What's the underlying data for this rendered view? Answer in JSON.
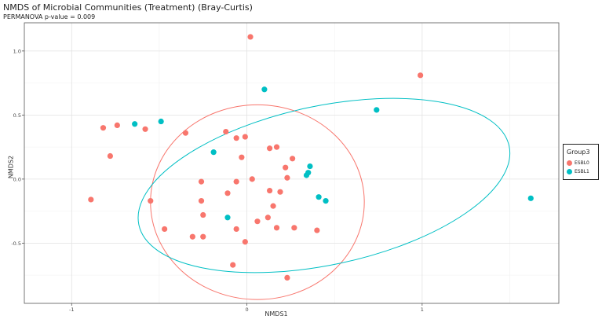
{
  "chart_data": {
    "type": "scatter",
    "title": "NMDS of Microbial Communities (Treatment) (Bray-Curtis)",
    "subtitle": "PERMANOVA p-value = 0.009",
    "xlabel": "NMDS1",
    "ylabel": "NMDS2",
    "xlim": [
      -1.27,
      1.78
    ],
    "ylim": [
      -0.97,
      1.22
    ],
    "xticks": [
      -1,
      0,
      1
    ],
    "yticks": [
      -0.5,
      0.0,
      0.5,
      1.0
    ],
    "xtick_labels": [
      "-1",
      "0",
      "1"
    ],
    "ytick_labels": [
      "-0.5",
      "0.0",
      "0.5",
      "1.0"
    ],
    "grid": true,
    "legend_title": "Group3",
    "series": [
      {
        "name": "ESBL0",
        "color": "#F8766D",
        "x": [
          0.02,
          0.99,
          -0.74,
          -0.82,
          -0.58,
          -0.35,
          -0.12,
          -0.06,
          -0.01,
          0.13,
          0.17,
          -0.78,
          -0.03,
          0.22,
          0.26,
          0.23,
          -0.26,
          0.03,
          -0.11,
          -0.06,
          0.13,
          0.19,
          -0.26,
          -0.89,
          -0.55,
          0.15,
          -0.25,
          0.06,
          0.12,
          -0.47,
          -0.06,
          0.17,
          0.27,
          0.4,
          -0.31,
          -0.25,
          -0.01,
          -0.08,
          0.23
        ],
        "y": [
          1.11,
          0.81,
          0.42,
          0.4,
          0.39,
          0.36,
          0.37,
          0.32,
          0.33,
          0.24,
          0.25,
          0.18,
          0.17,
          0.09,
          0.16,
          0.01,
          -0.02,
          0.0,
          -0.11,
          -0.02,
          -0.09,
          -0.1,
          -0.17,
          -0.16,
          -0.17,
          -0.21,
          -0.28,
          -0.33,
          -0.3,
          -0.39,
          -0.39,
          -0.38,
          -0.38,
          -0.4,
          -0.45,
          -0.45,
          -0.49,
          -0.67,
          -0.77
        ]
      },
      {
        "name": "ESBL1",
        "color": "#00BFC4",
        "x": [
          0.1,
          0.74,
          -0.64,
          -0.49,
          -0.19,
          0.36,
          0.35,
          0.34,
          0.41,
          0.45,
          1.62,
          -0.11
        ],
        "y": [
          0.7,
          0.54,
          0.43,
          0.45,
          0.21,
          0.1,
          0.05,
          0.03,
          -0.14,
          -0.17,
          -0.15,
          -0.3
        ]
      }
    ],
    "ellipses": [
      {
        "group": "ESBL0",
        "cx": 0.06,
        "cy": -0.18,
        "rx": 0.61,
        "ry": 0.76,
        "rotation_deg": 0
      },
      {
        "group": "ESBL1",
        "cx": 0.44,
        "cy": -0.05,
        "rx": 1.08,
        "ry": 0.62,
        "rotation_deg": -12
      }
    ]
  }
}
